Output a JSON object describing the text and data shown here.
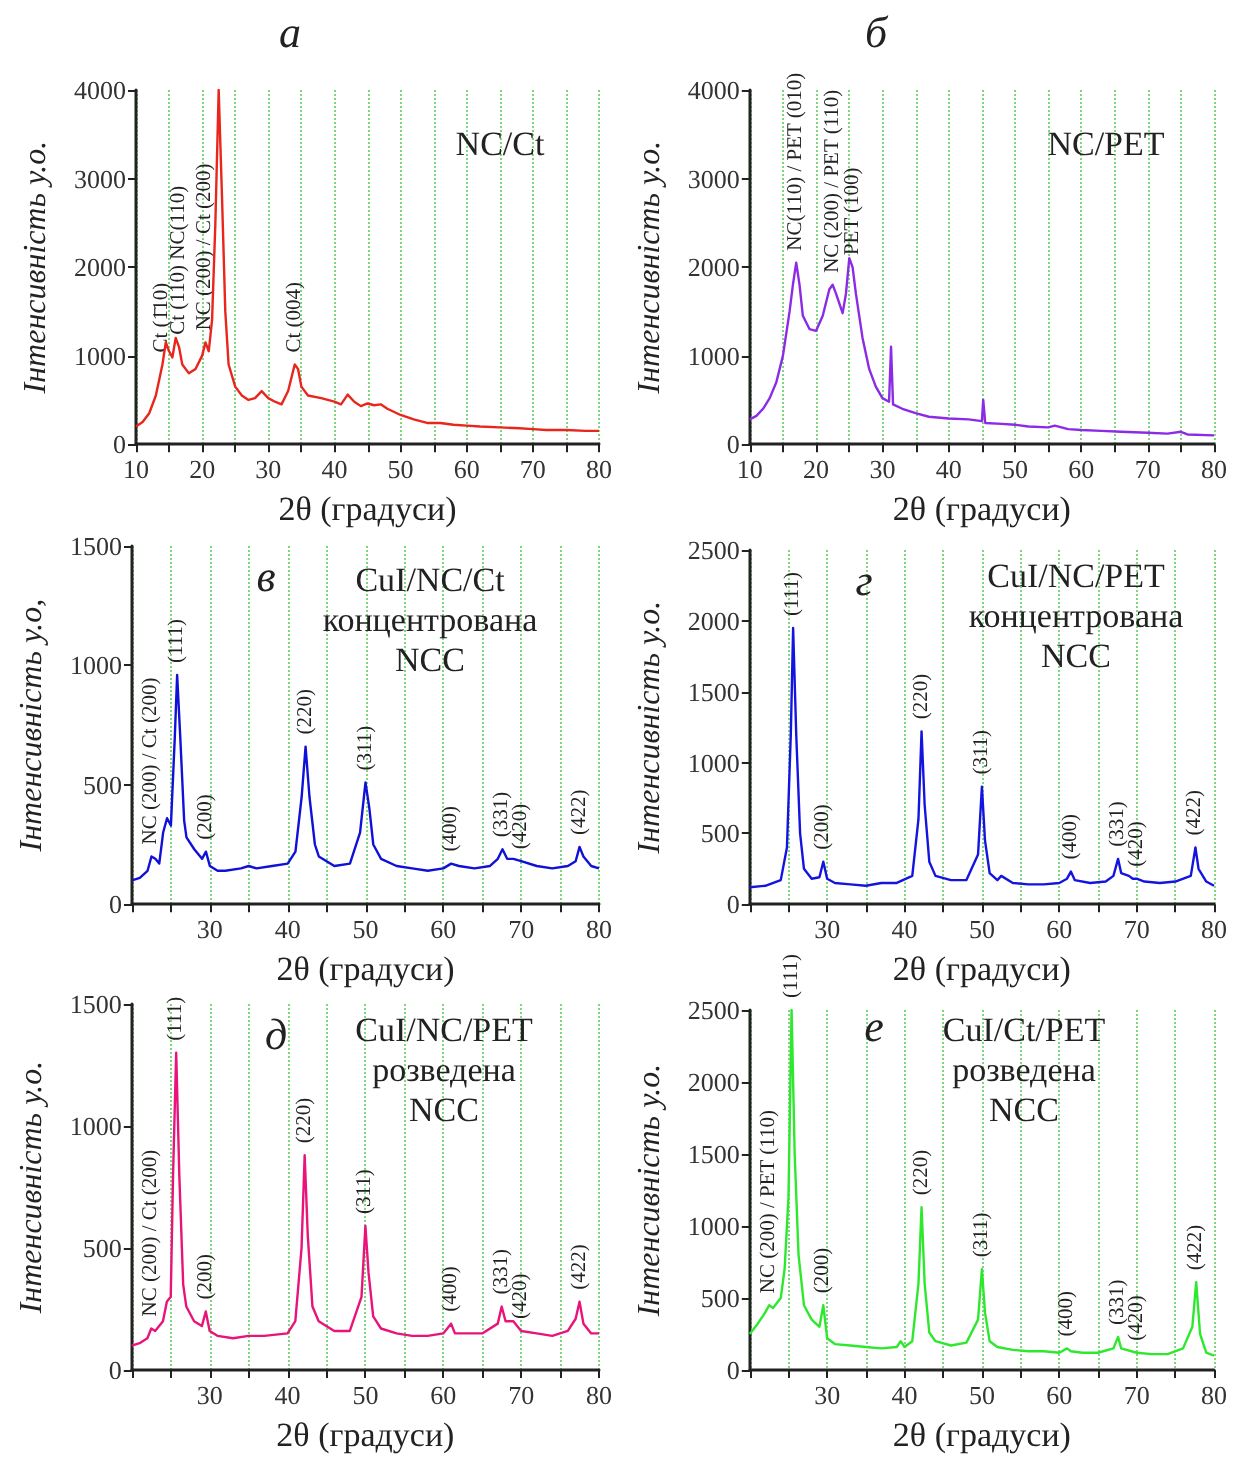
{
  "chart_data": [
    {
      "type": "line",
      "title": "а",
      "xlabel": "2θ (градуси)",
      "ylabel": "Інтенсивність у.о.",
      "color": "#e8261c",
      "xlim": [
        10,
        80
      ],
      "ylim": [
        0,
        4000
      ],
      "xticks": [
        10,
        {
          "value": 15,
          "label": null
        },
        20,
        {
          "value": 25,
          "label": null
        },
        30,
        {
          "value": 35,
          "label": null
        },
        40,
        {
          "value": 45,
          "label": null
        },
        50,
        {
          "value": 55,
          "label": null
        },
        60,
        {
          "value": 65,
          "label": null
        },
        70,
        {
          "value": 75,
          "label": null
        },
        80
      ],
      "yticks": [
        0,
        1000,
        2000,
        3000,
        4000
      ],
      "grid": "x",
      "x": [
        10,
        11,
        12,
        13,
        14,
        14.5,
        15,
        15.5,
        16,
        16.5,
        17,
        18,
        19,
        20,
        20.5,
        21,
        21.5,
        22,
        22.5,
        23,
        23.5,
        24,
        25,
        26,
        27,
        28,
        29,
        30,
        31,
        32,
        33,
        34,
        34.5,
        35,
        36,
        38,
        40,
        41,
        42,
        43,
        44,
        45,
        46,
        47,
        48,
        50,
        52,
        54,
        56,
        58,
        60,
        62,
        65,
        68,
        70,
        72,
        75,
        78,
        80
      ],
      "values": [
        200,
        250,
        350,
        550,
        900,
        1150,
        1050,
        980,
        1200,
        1100,
        900,
        800,
        850,
        1000,
        1150,
        1050,
        1400,
        2500,
        4000,
        2800,
        1500,
        900,
        650,
        550,
        500,
        520,
        600,
        520,
        480,
        450,
        600,
        900,
        850,
        650,
        550,
        520,
        480,
        450,
        560,
        480,
        430,
        460,
        440,
        450,
        400,
        330,
        280,
        240,
        240,
        220,
        210,
        200,
        190,
        180,
        170,
        160,
        160,
        150,
        150
      ],
      "annotations": [
        "NC/Ct",
        {
          "text": "Ct (1̄10)",
          "x": 14,
          "y": 900
        },
        {
          "text": "Ct (110) NC(110)",
          "x": 16.5,
          "y": 1100
        },
        {
          "text": "NC (200) / Ct (200)",
          "x": 20.5,
          "y": 1150
        },
        {
          "text": "Ct (004)",
          "x": 34,
          "y": 900
        }
      ]
    },
    {
      "type": "line",
      "title": "б",
      "xlabel": "2θ (градуси)",
      "ylabel": "Інтенсивність у.о.",
      "color": "#8b2be6",
      "xlim": [
        10,
        80
      ],
      "ylim": [
        0,
        4000
      ],
      "xticks": [
        10,
        {
          "value": 15,
          "label": null
        },
        20,
        {
          "value": 25,
          "label": null
        },
        30,
        {
          "value": 35,
          "label": null
        },
        40,
        {
          "value": 45,
          "label": null
        },
        50,
        {
          "value": 55,
          "label": null
        },
        60,
        {
          "value": 65,
          "label": null
        },
        70,
        {
          "value": 75,
          "label": null
        },
        80
      ],
      "yticks": [
        0,
        1000,
        2000,
        3000,
        4000
      ],
      "grid": "x",
      "x": [
        10,
        11,
        12,
        13,
        14,
        15,
        16,
        16.5,
        17,
        17.5,
        18,
        19,
        20,
        21,
        22,
        22.5,
        23,
        24,
        24.5,
        25,
        25.5,
        26,
        27,
        28,
        29,
        30,
        31,
        31.3,
        31.6,
        33,
        35,
        37,
        40,
        43,
        45,
        45.2,
        45.5,
        48,
        50,
        52,
        55,
        56,
        58,
        60,
        63,
        66,
        70,
        73,
        75,
        76,
        80
      ],
      "values": [
        280,
        320,
        400,
        520,
        700,
        1000,
        1500,
        1800,
        2050,
        1800,
        1450,
        1300,
        1280,
        1450,
        1750,
        1800,
        1700,
        1480,
        1700,
        2100,
        2000,
        1700,
        1200,
        850,
        650,
        520,
        480,
        1100,
        450,
        400,
        350,
        310,
        290,
        280,
        260,
        500,
        240,
        230,
        220,
        200,
        190,
        210,
        170,
        160,
        150,
        140,
        130,
        120,
        140,
        110,
        100
      ],
      "annotations": [
        "NC/PET",
        {
          "text": "NC(110) / PET (010)",
          "x": 17,
          "y": 2050
        },
        {
          "text": "NC (200) / PET (110)",
          "x": 22.5,
          "y": 1800
        },
        {
          "text": "PET (100)",
          "x": 25.5,
          "y": 2000
        }
      ]
    },
    {
      "type": "line",
      "title": "в",
      "xlabel": "2θ (градуси)",
      "ylabel": "Інтенсивність у.о,",
      "color": "#1010d8",
      "xlim": [
        20,
        80
      ],
      "ylim": [
        0,
        1500
      ],
      "xticks": [
        {
          "value": 25,
          "label": null
        },
        30,
        {
          "value": 35,
          "label": null
        },
        40,
        {
          "value": 45,
          "label": null
        },
        50,
        {
          "value": 55,
          "label": null
        },
        60,
        {
          "value": 65,
          "label": null
        },
        70,
        {
          "value": 75,
          "label": null
        },
        80
      ],
      "yticks": [
        0,
        500,
        1000,
        1500
      ],
      "grid": "x",
      "x": [
        20,
        21,
        22,
        22.5,
        23,
        23.5,
        24,
        24.5,
        25,
        25.5,
        25.8,
        26.2,
        26.7,
        27,
        28,
        29,
        29.5,
        30,
        31,
        32,
        34,
        35,
        36,
        38,
        40,
        41,
        41.8,
        42.3,
        42.8,
        43.5,
        44,
        46,
        48,
        49.3,
        50,
        50.5,
        51,
        52,
        54,
        56,
        58,
        60,
        61,
        62,
        64,
        66,
        67,
        67.6,
        68.2,
        69,
        70,
        72,
        74,
        76,
        77,
        77.5,
        78,
        79,
        80
      ],
      "values": [
        100,
        110,
        140,
        200,
        190,
        170,
        300,
        360,
        330,
        700,
        960,
        700,
        350,
        280,
        230,
        190,
        220,
        160,
        140,
        140,
        150,
        160,
        150,
        160,
        170,
        220,
        450,
        660,
        450,
        250,
        200,
        160,
        170,
        300,
        510,
        400,
        250,
        190,
        160,
        150,
        140,
        150,
        170,
        160,
        150,
        160,
        190,
        230,
        190,
        190,
        180,
        160,
        150,
        160,
        180,
        240,
        200,
        160,
        150
      ],
      "annotations": [
        "CuI/NC/Ct\nконцентрована\nNCC",
        {
          "text": "NC (200) / Ct (200)",
          "x": 22.5,
          "y": 200
        },
        {
          "text": "(111)",
          "x": 25.8,
          "y": 960
        },
        {
          "text": "(200)",
          "x": 29.5,
          "y": 220
        },
        {
          "text": "(220)",
          "x": 42.3,
          "y": 660
        },
        {
          "text": "(311)",
          "x": 50,
          "y": 510
        },
        {
          "text": "(400)",
          "x": 61,
          "y": 170
        },
        {
          "text": "(331)",
          "x": 67.6,
          "y": 230
        },
        {
          "text": "(420)",
          "x": 70,
          "y": 180
        },
        {
          "text": "(422)",
          "x": 77.5,
          "y": 240
        }
      ]
    },
    {
      "type": "line",
      "title": "г",
      "xlabel": "2θ (градуси)",
      "ylabel": "Інтенсивність у.о.",
      "color": "#1414e0",
      "xlim": [
        20,
        80
      ],
      "ylim": [
        0,
        2500
      ],
      "xticks": [
        {
          "value": 25,
          "label": null
        },
        30,
        {
          "value": 35,
          "label": null
        },
        40,
        {
          "value": 45,
          "label": null
        },
        50,
        {
          "value": 55,
          "label": null
        },
        60,
        {
          "value": 65,
          "label": null
        },
        70,
        {
          "value": 75,
          "label": null
        },
        80
      ],
      "yticks": [
        0,
        500,
        1000,
        1500,
        2000,
        2500
      ],
      "grid": "x",
      "x": [
        20,
        22,
        24,
        24.8,
        25.3,
        25.6,
        26,
        26.5,
        27,
        28,
        29,
        29.5,
        30,
        31,
        33,
        35,
        37,
        39,
        41,
        41.8,
        42.2,
        42.6,
        43.2,
        44,
        46,
        48,
        49.5,
        50,
        50.4,
        51,
        52,
        52.5,
        54,
        56,
        58,
        60,
        61,
        61.5,
        62,
        64,
        66,
        67,
        67.6,
        68,
        69,
        69.5,
        70,
        71,
        73,
        75,
        77,
        77.6,
        78,
        79,
        80
      ],
      "values": [
        120,
        130,
        170,
        400,
        1200,
        1950,
        1200,
        500,
        250,
        180,
        190,
        300,
        180,
        150,
        140,
        130,
        150,
        150,
        200,
        600,
        1220,
        700,
        300,
        200,
        170,
        170,
        350,
        830,
        450,
        220,
        170,
        200,
        150,
        140,
        140,
        150,
        180,
        230,
        170,
        150,
        160,
        200,
        320,
        220,
        200,
        180,
        180,
        160,
        150,
        160,
        200,
        400,
        250,
        160,
        130
      ],
      "annotations": [
        "CuI/NC/PET\nконцентрована\nNCC",
        {
          "text": "(111)",
          "x": 25.6,
          "y": 1950
        },
        {
          "text": "(200)",
          "x": 29.5,
          "y": 300
        },
        {
          "text": "(220)",
          "x": 42.2,
          "y": 1220
        },
        {
          "text": "(311)",
          "x": 50,
          "y": 830
        },
        {
          "text": "(400)",
          "x": 61.5,
          "y": 230
        },
        {
          "text": "(331)",
          "x": 67.6,
          "y": 320
        },
        {
          "text": "(420)",
          "x": 70,
          "y": 180
        },
        {
          "text": "(422)",
          "x": 77.6,
          "y": 400
        }
      ]
    },
    {
      "type": "line",
      "title": "д",
      "xlabel": "2θ (градуси)",
      "ylabel": "Інтенсивність у.о.",
      "color": "#e8147a",
      "xlim": [
        20,
        80
      ],
      "ylim": [
        0,
        1500
      ],
      "xticks": [
        {
          "value": 25,
          "label": null
        },
        30,
        {
          "value": 35,
          "label": null
        },
        40,
        {
          "value": 45,
          "label": null
        },
        50,
        {
          "value": 55,
          "label": null
        },
        60,
        {
          "value": 65,
          "label": null
        },
        70,
        {
          "value": 75,
          "label": null
        },
        80
      ],
      "yticks": [
        0,
        500,
        1000,
        1500
      ],
      "grid": "x",
      "x": [
        20,
        21,
        22,
        22.5,
        23,
        24,
        24.5,
        25,
        25.3,
        25.7,
        26.1,
        26.6,
        27,
        28,
        29,
        29.5,
        30,
        31,
        33,
        35,
        37,
        40,
        41,
        41.8,
        42.2,
        42.6,
        43.2,
        44,
        46,
        48,
        49.5,
        50,
        50.4,
        51,
        52,
        54,
        56,
        58,
        60,
        61,
        61.5,
        63,
        65,
        67,
        67.5,
        68,
        69,
        70,
        72,
        74,
        76,
        77,
        77.5,
        78,
        79,
        80
      ],
      "values": [
        100,
        110,
        130,
        170,
        160,
        200,
        280,
        300,
        800,
        1300,
        800,
        350,
        260,
        200,
        180,
        240,
        160,
        140,
        130,
        140,
        140,
        150,
        200,
        500,
        880,
        550,
        260,
        200,
        160,
        160,
        300,
        590,
        400,
        220,
        170,
        150,
        140,
        140,
        150,
        190,
        150,
        150,
        150,
        190,
        260,
        200,
        200,
        160,
        150,
        140,
        160,
        210,
        280,
        190,
        150,
        150
      ],
      "annotations": [
        "CuI/NC/PET\nрозведена\nNCC",
        {
          "text": "NC (200) / Ct (200)",
          "x": 22.5,
          "y": 170
        },
        {
          "text": "(111)",
          "x": 25.7,
          "y": 1300
        },
        {
          "text": "(200)",
          "x": 29.5,
          "y": 240
        },
        {
          "text": "(220)",
          "x": 42.2,
          "y": 880
        },
        {
          "text": "(311)",
          "x": 50,
          "y": 590
        },
        {
          "text": "(400)",
          "x": 61,
          "y": 190
        },
        {
          "text": "(331)",
          "x": 67.5,
          "y": 260
        },
        {
          "text": "(420)",
          "x": 70,
          "y": 160
        },
        {
          "text": "(422)",
          "x": 77.5,
          "y": 280
        }
      ]
    },
    {
      "type": "line",
      "title": "е",
      "xlabel": "2θ (градуси)",
      "ylabel": "Інтенсивність у.о.",
      "color": "#2ee82e",
      "xlim": [
        20,
        80
      ],
      "ylim": [
        0,
        2500
      ],
      "xticks": [
        {
          "value": 25,
          "label": null
        },
        30,
        {
          "value": 35,
          "label": null
        },
        40,
        {
          "value": 45,
          "label": null
        },
        50,
        {
          "value": 55,
          "label": null
        },
        60,
        {
          "value": 65,
          "label": null
        },
        70,
        {
          "value": 75,
          "label": null
        },
        80
      ],
      "yticks": [
        0,
        500,
        1000,
        1500,
        2000,
        2500
      ],
      "grid": "x",
      "x": [
        20,
        21,
        22,
        22.5,
        23,
        24,
        24.5,
        25,
        25.4,
        25.8,
        26.3,
        27,
        28,
        29,
        29.5,
        30,
        31,
        33,
        35,
        37,
        39,
        39.5,
        40,
        41,
        41.8,
        42.2,
        42.6,
        43.2,
        44,
        46,
        48,
        49.5,
        50,
        50.4,
        51,
        52,
        54,
        56,
        58,
        60,
        61,
        61.5,
        63,
        65,
        67,
        67.6,
        68,
        70,
        72,
        74,
        76,
        77.2,
        77.7,
        78.2,
        79,
        80
      ],
      "values": [
        250,
        320,
        400,
        450,
        430,
        500,
        700,
        1200,
        2500,
        1500,
        800,
        450,
        350,
        300,
        450,
        220,
        180,
        170,
        160,
        150,
        160,
        200,
        160,
        200,
        600,
        1130,
        600,
        260,
        200,
        170,
        190,
        350,
        700,
        400,
        200,
        160,
        140,
        130,
        130,
        120,
        150,
        130,
        120,
        120,
        150,
        230,
        150,
        120,
        110,
        110,
        150,
        300,
        610,
        250,
        120,
        100
      ],
      "annotations": [
        "CuI/Ct/PET\nрозведена\nNCC",
        {
          "text": "NC (200) / PET (110)",
          "x": 22.5,
          "y": 450
        },
        {
          "text": "(111)",
          "x": 25.4,
          "y": 2500
        },
        {
          "text": "(200)",
          "x": 29.5,
          "y": 450
        },
        {
          "text": "(220)",
          "x": 42.2,
          "y": 1130
        },
        {
          "text": "(311)",
          "x": 50,
          "y": 700
        },
        {
          "text": "(400)",
          "x": 61,
          "y": 150
        },
        {
          "text": "(331)",
          "x": 67.6,
          "y": 230
        },
        {
          "text": "(420)",
          "x": 70,
          "y": 120
        },
        {
          "text": "(422)",
          "x": 77.7,
          "y": 610
        }
      ]
    }
  ]
}
